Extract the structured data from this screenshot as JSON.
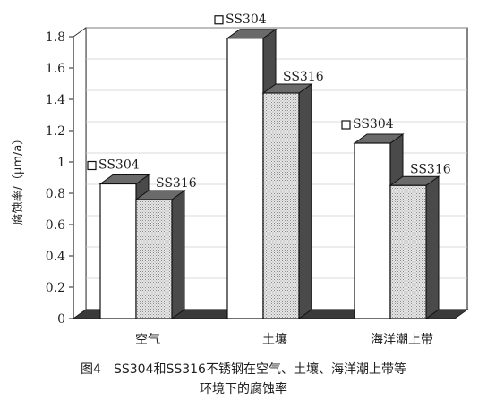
{
  "chart_data": {
    "type": "bar",
    "style": "3d-clustered",
    "categories": [
      "空气",
      "土壤",
      "海洋潮上带"
    ],
    "series": [
      {
        "name": "SS304",
        "values": [
          0.86,
          1.79,
          1.12
        ],
        "color": "#ffffff"
      },
      {
        "name": "SS316",
        "values": [
          0.76,
          1.44,
          0.85
        ],
        "color": "#d9d9d9",
        "pattern": "dotted"
      }
    ],
    "ylabel": "腐蚀率/（μm/a）",
    "ylim": [
      0,
      1.8
    ],
    "yticks": [
      "0",
      "0.2",
      "0.4",
      "0.6",
      "0.8",
      "1",
      "1.2",
      "1.4",
      "1.6",
      "1.8"
    ],
    "grid": true,
    "legend": "labels-above-bars"
  },
  "caption": {
    "line1": "图4　SS304和SS316不锈钢在空气、土壤、海洋潮上带等",
    "line2": "环境下的腐蚀率"
  }
}
